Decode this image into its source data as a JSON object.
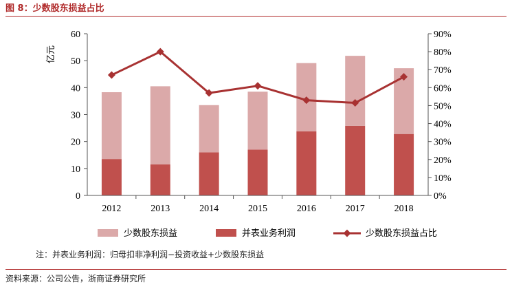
{
  "figure": {
    "title": "图 8：少数股东损益占比",
    "note": "注：并表业务利润：归母扣非净利润−投资收益+少数股东损益",
    "source": "资料来源：公司公告，浙商证券研究所"
  },
  "chart_data": {
    "type": "bar",
    "categories": [
      "2012",
      "2013",
      "2014",
      "2015",
      "2016",
      "2017",
      "2018"
    ],
    "series": [
      {
        "name": "少数股东损益",
        "kind": "bar",
        "axis": "left",
        "color": "#dba9a9",
        "values": [
          24.8,
          29,
          17.5,
          21.5,
          25.3,
          26,
          24.4
        ]
      },
      {
        "name": "并表业务利润",
        "kind": "bar",
        "axis": "left",
        "color": "#c0504d",
        "values": [
          13.5,
          11.5,
          16,
          17,
          23.8,
          25.8,
          22.8
        ]
      },
      {
        "name": "少数股东损益占比",
        "kind": "line",
        "axis": "right",
        "color": "#a83232",
        "values": [
          67,
          80,
          57,
          61,
          53,
          51.5,
          66
        ]
      }
    ],
    "stacked": true,
    "ylabel": "亿元",
    "ylim": [
      0,
      60
    ],
    "yticks": [
      "0",
      "10",
      "20",
      "30",
      "40",
      "50",
      "60"
    ],
    "y2lim": [
      0,
      90
    ],
    "y2ticks": [
      "0%",
      "10%",
      "20%",
      "30%",
      "40%",
      "50%",
      "60%",
      "70%",
      "80%",
      "90%"
    ],
    "grid": false,
    "legend": "bottom"
  }
}
